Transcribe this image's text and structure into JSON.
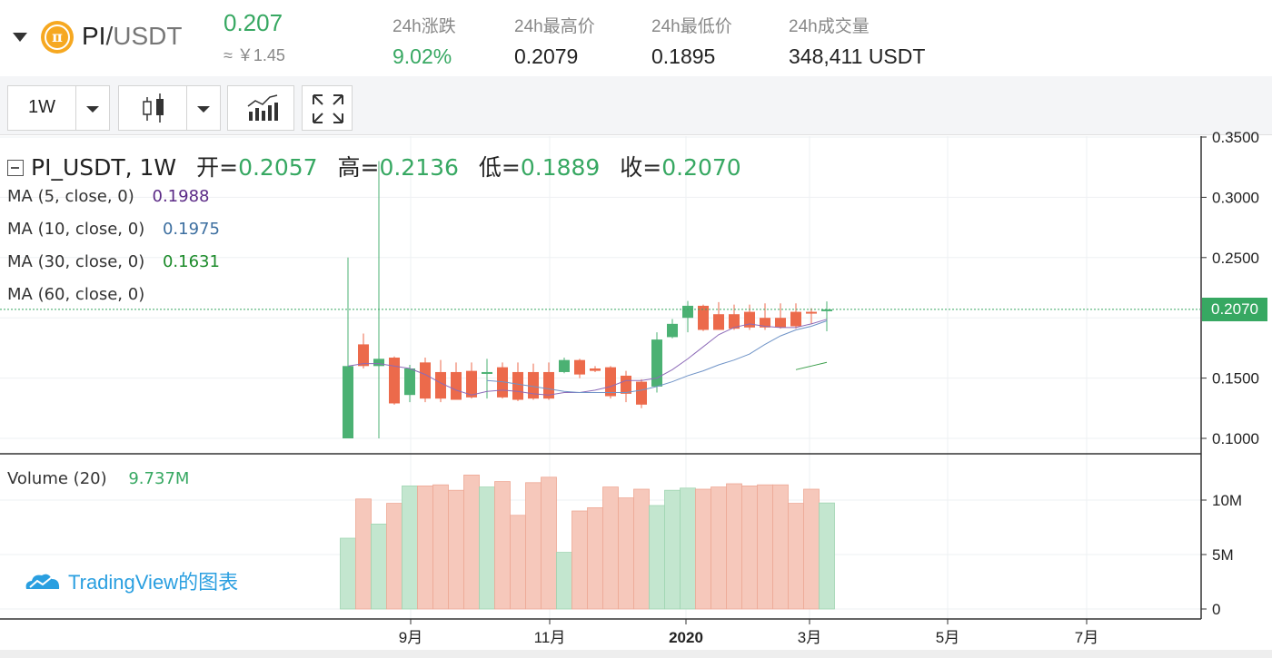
{
  "header": {
    "pair_base": "PI",
    "pair_sep": "/",
    "pair_quote": "USDT",
    "logo_glyph": "π",
    "price": "0.207",
    "price_cny": "≈ ￥1.45",
    "stats": [
      {
        "label": "24h涨跌",
        "value": "9.02%"
      },
      {
        "label": "24h最高价",
        "value": "0.2079"
      },
      {
        "label": "24h最低价",
        "value": "0.1895"
      },
      {
        "label": "24h成交量",
        "value": "348,411 USDT"
      }
    ]
  },
  "toolbar": {
    "interval": "1W"
  },
  "legend": {
    "symbol": "PI_USDT, 1W",
    "open_label": "开=",
    "open": "0.2057",
    "high_label": "高=",
    "high": "0.2136",
    "low_label": "低=",
    "low": "0.1889",
    "close_label": "收=",
    "close": "0.2070",
    "ma": [
      {
        "label": "MA (5, close, 0)",
        "value": "0.1988",
        "color": "#5b2a86"
      },
      {
        "label": "MA (10, close, 0)",
        "value": "0.1975",
        "color": "#3d6fa0"
      },
      {
        "label": "MA (30, close, 0)",
        "value": "0.1631",
        "color": "#1c8b2a"
      },
      {
        "label": "MA (60, close, 0)",
        "value": "",
        "color": "#333333"
      }
    ],
    "volume_label": "Volume (20)",
    "volume_value": "9.737M"
  },
  "watermark": "TradingView的图表",
  "colors": {
    "up": "#4bb173",
    "down": "#ec6a4b",
    "accent": "#37a862"
  },
  "chart_data": {
    "type": "candlestick",
    "price_axis_ticks": [
      "0.3500",
      "0.3000",
      "0.2500",
      "0.1500",
      "0.1000"
    ],
    "last_price_label": "0.2070",
    "volume_axis_ticks": [
      "10M",
      "5M",
      "0"
    ],
    "time_axis_ticks": [
      "9月",
      "11月",
      "2020",
      "3月",
      "5月",
      "7月"
    ],
    "ylim": [
      0.1,
      0.35
    ],
    "candles": [
      {
        "o": 0.1,
        "h": 0.25,
        "l": 0.1,
        "c": 0.16,
        "v": 6.5
      },
      {
        "o": 0.178,
        "h": 0.187,
        "l": 0.158,
        "c": 0.16,
        "v": 10.1
      },
      {
        "o": 0.16,
        "h": 0.33,
        "l": 0.1,
        "c": 0.166,
        "v": 7.8
      },
      {
        "o": 0.167,
        "h": 0.168,
        "l": 0.128,
        "c": 0.129,
        "v": 9.7
      },
      {
        "o": 0.136,
        "h": 0.161,
        "l": 0.13,
        "c": 0.158,
        "v": 11.3
      },
      {
        "o": 0.163,
        "h": 0.167,
        "l": 0.13,
        "c": 0.133,
        "v": 11.3
      },
      {
        "o": 0.155,
        "h": 0.165,
        "l": 0.13,
        "c": 0.133,
        "v": 11.4
      },
      {
        "o": 0.155,
        "h": 0.163,
        "l": 0.132,
        "c": 0.132,
        "v": 10.9
      },
      {
        "o": 0.156,
        "h": 0.163,
        "l": 0.133,
        "c": 0.134,
        "v": 12.3
      },
      {
        "o": 0.154,
        "h": 0.166,
        "l": 0.133,
        "c": 0.155,
        "v": 11.2
      },
      {
        "o": 0.159,
        "h": 0.163,
        "l": 0.133,
        "c": 0.134,
        "v": 11.7
      },
      {
        "o": 0.155,
        "h": 0.163,
        "l": 0.131,
        "c": 0.132,
        "v": 8.6
      },
      {
        "o": 0.155,
        "h": 0.162,
        "l": 0.132,
        "c": 0.133,
        "v": 11.6
      },
      {
        "o": 0.155,
        "h": 0.163,
        "l": 0.132,
        "c": 0.133,
        "v": 12.1
      },
      {
        "o": 0.155,
        "h": 0.167,
        "l": 0.154,
        "c": 0.165,
        "v": 5.2
      },
      {
        "o": 0.165,
        "h": 0.166,
        "l": 0.15,
        "c": 0.153,
        "v": 9.0
      },
      {
        "o": 0.158,
        "h": 0.16,
        "l": 0.155,
        "c": 0.156,
        "v": 9.3
      },
      {
        "o": 0.159,
        "h": 0.16,
        "l": 0.133,
        "c": 0.135,
        "v": 11.2
      },
      {
        "o": 0.152,
        "h": 0.156,
        "l": 0.13,
        "c": 0.137,
        "v": 10.2
      },
      {
        "o": 0.147,
        "h": 0.149,
        "l": 0.125,
        "c": 0.128,
        "v": 11.0
      },
      {
        "o": 0.143,
        "h": 0.188,
        "l": 0.138,
        "c": 0.182,
        "v": 9.5
      },
      {
        "o": 0.184,
        "h": 0.199,
        "l": 0.183,
        "c": 0.195,
        "v": 10.9
      },
      {
        "o": 0.2,
        "h": 0.214,
        "l": 0.188,
        "c": 0.21,
        "v": 11.1
      },
      {
        "o": 0.21,
        "h": 0.211,
        "l": 0.189,
        "c": 0.19,
        "v": 11.0
      },
      {
        "o": 0.203,
        "h": 0.213,
        "l": 0.19,
        "c": 0.19,
        "v": 11.2
      },
      {
        "o": 0.203,
        "h": 0.211,
        "l": 0.19,
        "c": 0.191,
        "v": 11.5
      },
      {
        "o": 0.205,
        "h": 0.211,
        "l": 0.19,
        "c": 0.192,
        "v": 11.3
      },
      {
        "o": 0.2,
        "h": 0.212,
        "l": 0.19,
        "c": 0.192,
        "v": 11.4
      },
      {
        "o": 0.2,
        "h": 0.212,
        "l": 0.191,
        "c": 0.192,
        "v": 11.4
      },
      {
        "o": 0.205,
        "h": 0.212,
        "l": 0.191,
        "c": 0.193,
        "v": 9.7
      },
      {
        "o": 0.205,
        "h": 0.208,
        "l": 0.195,
        "c": 0.204,
        "v": 11.0
      },
      {
        "o": 0.2057,
        "h": 0.2136,
        "l": 0.1889,
        "c": 0.207,
        "v": 9.737
      }
    ],
    "ma5": [
      0.16,
      0.162,
      0.162,
      0.16,
      0.158,
      0.153,
      0.146,
      0.14,
      0.136,
      0.139,
      0.14,
      0.139,
      0.137,
      0.136,
      0.138,
      0.138,
      0.14,
      0.143,
      0.148,
      0.148,
      0.15,
      0.157,
      0.166,
      0.176,
      0.186,
      0.192,
      0.195,
      0.193,
      0.192,
      0.192,
      0.195,
      0.1988
    ],
    "ma10": [
      null,
      null,
      null,
      null,
      null,
      null,
      null,
      null,
      null,
      0.148,
      0.147,
      0.145,
      0.143,
      0.141,
      0.139,
      0.138,
      0.138,
      0.138,
      0.138,
      0.14,
      0.143,
      0.147,
      0.152,
      0.156,
      0.161,
      0.165,
      0.17,
      0.178,
      0.185,
      0.19,
      0.193,
      0.1975
    ],
    "ma30": [
      null,
      null,
      null,
      null,
      null,
      null,
      null,
      null,
      null,
      null,
      null,
      null,
      null,
      null,
      null,
      null,
      null,
      null,
      null,
      null,
      null,
      null,
      null,
      null,
      null,
      null,
      null,
      null,
      null,
      0.157,
      0.16,
      0.1631
    ]
  }
}
